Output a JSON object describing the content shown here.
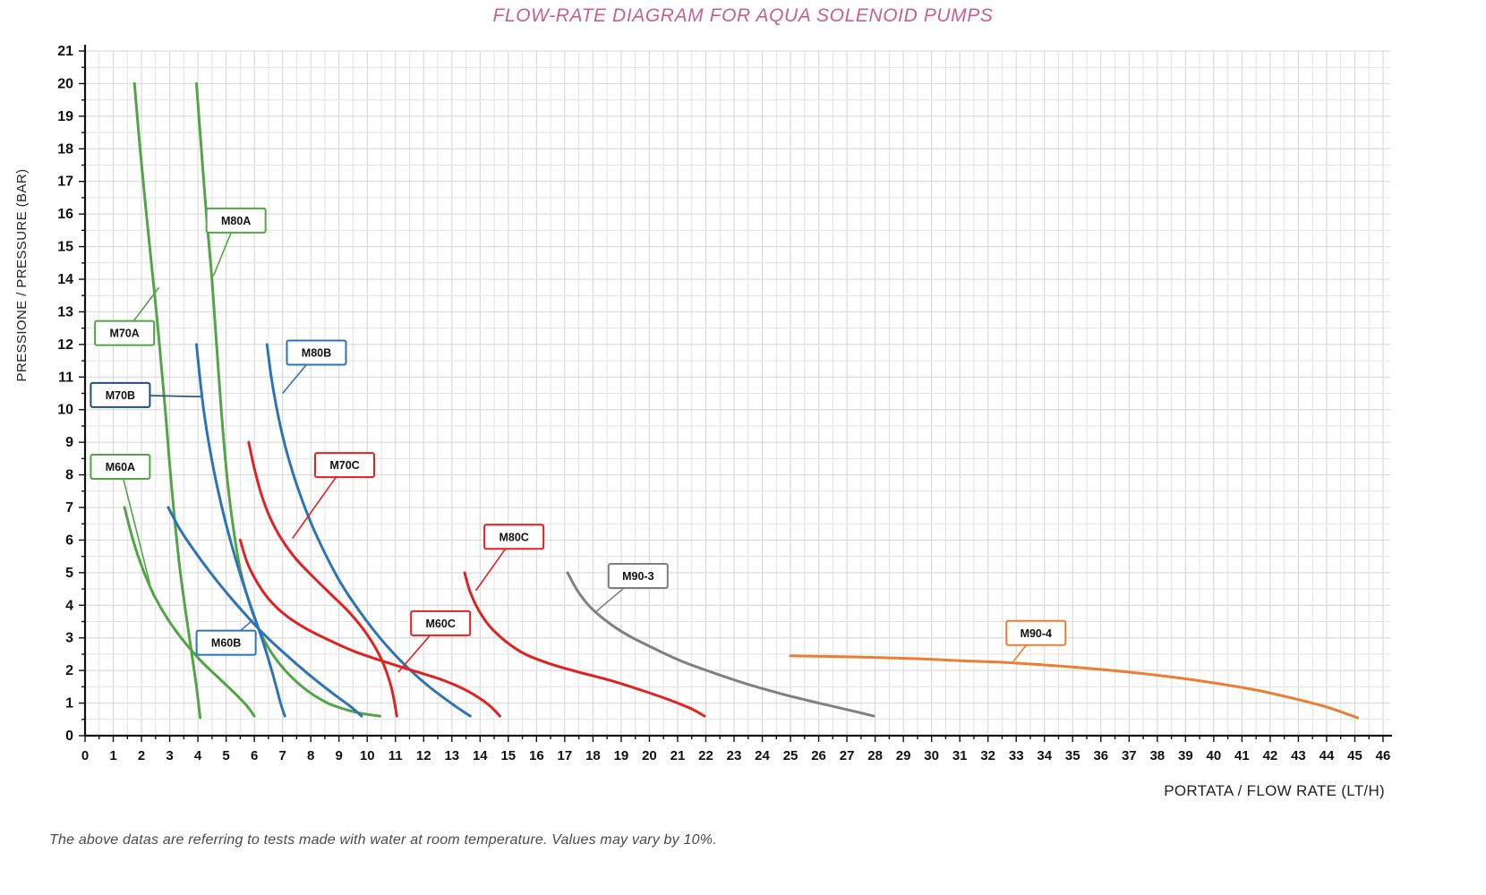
{
  "page": {
    "title_color": "#c4618e",
    "footnote": "The above datas are referring to tests made with water at room temperature. Values may vary by 10%."
  },
  "chart_data": {
    "type": "line",
    "title": "FLOW-RATE DIAGRAM FOR AQUA SOLENOID PUMPS",
    "xlabel": "PORTATA / FLOW RATE (LT/H)",
    "ylabel": "PRESSIONE / PRESSURE (BAR)",
    "xlim": [
      0,
      46
    ],
    "ylim": [
      0,
      21
    ],
    "x_tick_step": 1,
    "y_tick_step": 1,
    "minor_step": 0.5,
    "grid": true,
    "legend": "callout-labels-on-curves",
    "colors": {
      "green": "#52a447",
      "blue": "#2e74b5",
      "red": "#e02222",
      "gray": "#808080",
      "orange": "#ed7d31",
      "axis": "#111111",
      "grid_major": "#d4d4d4",
      "grid_minor": "#e3e3e3"
    },
    "series": [
      {
        "name": "M60A",
        "color": "#52a447",
        "points": [
          [
            1.4,
            7.0
          ],
          [
            1.7,
            6.0
          ],
          [
            2.05,
            5.1
          ],
          [
            2.45,
            4.3
          ],
          [
            2.95,
            3.55
          ],
          [
            3.5,
            2.9
          ],
          [
            4.1,
            2.3
          ],
          [
            4.7,
            1.8
          ],
          [
            5.25,
            1.35
          ],
          [
            5.7,
            0.95
          ],
          [
            6.0,
            0.6
          ]
        ],
        "label_box": [
          1.25,
          8.25
        ],
        "label_anchor": [
          2.3,
          4.65
        ]
      },
      {
        "name": "M70A",
        "color": "#52a447",
        "points": [
          [
            1.75,
            20.0
          ],
          [
            1.95,
            18.0
          ],
          [
            2.15,
            16.2
          ],
          [
            2.35,
            14.5
          ],
          [
            2.55,
            12.8
          ],
          [
            2.72,
            11.2
          ],
          [
            2.88,
            9.6
          ],
          [
            3.02,
            8.1
          ],
          [
            3.18,
            6.6
          ],
          [
            3.35,
            5.2
          ],
          [
            3.55,
            3.9
          ],
          [
            3.75,
            2.7
          ],
          [
            3.95,
            1.5
          ],
          [
            4.08,
            0.55
          ]
        ],
        "label_box": [
          1.4,
          12.35
        ],
        "label_anchor": [
          2.62,
          13.75
        ]
      },
      {
        "name": "M80A",
        "color": "#52a447",
        "points": [
          [
            3.95,
            20.0
          ],
          [
            4.12,
            18.0
          ],
          [
            4.3,
            16.0
          ],
          [
            4.48,
            14.2
          ],
          [
            4.62,
            12.5
          ],
          [
            4.76,
            10.8
          ],
          [
            4.9,
            9.2
          ],
          [
            5.05,
            7.8
          ],
          [
            5.25,
            6.4
          ],
          [
            5.5,
            5.1
          ],
          [
            5.85,
            4.0
          ],
          [
            6.3,
            3.0
          ],
          [
            6.9,
            2.2
          ],
          [
            7.7,
            1.5
          ],
          [
            8.6,
            1.0
          ],
          [
            9.6,
            0.72
          ],
          [
            10.45,
            0.6
          ]
        ],
        "label_box": [
          5.35,
          15.8
        ],
        "label_anchor": [
          4.55,
          14.1
        ]
      },
      {
        "name": "M60B",
        "color": "#2e74b5",
        "points": [
          [
            2.95,
            7.0
          ],
          [
            3.35,
            6.35
          ],
          [
            3.85,
            5.7
          ],
          [
            4.4,
            5.05
          ],
          [
            5.0,
            4.4
          ],
          [
            5.65,
            3.75
          ],
          [
            6.35,
            3.1
          ],
          [
            7.1,
            2.5
          ],
          [
            7.9,
            1.9
          ],
          [
            8.7,
            1.35
          ],
          [
            9.4,
            0.9
          ],
          [
            9.8,
            0.6
          ]
        ],
        "label_box": [
          5.0,
          2.85
        ],
        "label_anchor": [
          5.95,
          3.55
        ]
      },
      {
        "name": "M70B",
        "color": "#2e74b5",
        "label_border": "#1f4e79",
        "points": [
          [
            3.95,
            12.0
          ],
          [
            4.08,
            10.9
          ],
          [
            4.22,
            9.9
          ],
          [
            4.4,
            8.9
          ],
          [
            4.62,
            7.9
          ],
          [
            4.88,
            6.9
          ],
          [
            5.18,
            5.9
          ],
          [
            5.52,
            4.9
          ],
          [
            5.9,
            3.9
          ],
          [
            6.3,
            2.9
          ],
          [
            6.65,
            1.9
          ],
          [
            6.93,
            1.0
          ],
          [
            7.08,
            0.6
          ]
        ],
        "label_box": [
          1.25,
          10.45
        ],
        "label_anchor": [
          4.1,
          10.4
        ]
      },
      {
        "name": "M80B",
        "color": "#2e74b5",
        "points": [
          [
            6.45,
            12.0
          ],
          [
            6.6,
            11.0
          ],
          [
            6.78,
            10.1
          ],
          [
            7.0,
            9.2
          ],
          [
            7.28,
            8.3
          ],
          [
            7.62,
            7.4
          ],
          [
            8.02,
            6.5
          ],
          [
            8.5,
            5.6
          ],
          [
            9.05,
            4.7
          ],
          [
            9.7,
            3.85
          ],
          [
            10.45,
            3.0
          ],
          [
            11.3,
            2.2
          ],
          [
            12.2,
            1.5
          ],
          [
            13.05,
            0.95
          ],
          [
            13.65,
            0.6
          ]
        ],
        "label_box": [
          8.2,
          11.75
        ],
        "label_anchor": [
          7.0,
          10.5
        ]
      },
      {
        "name": "M60C",
        "color": "#e02222",
        "points": [
          [
            5.5,
            6.0
          ],
          [
            5.75,
            5.3
          ],
          [
            6.1,
            4.7
          ],
          [
            6.55,
            4.15
          ],
          [
            7.1,
            3.7
          ],
          [
            7.8,
            3.3
          ],
          [
            8.6,
            2.95
          ],
          [
            9.5,
            2.6
          ],
          [
            10.5,
            2.3
          ],
          [
            11.6,
            2.0
          ],
          [
            12.7,
            1.7
          ],
          [
            13.6,
            1.35
          ],
          [
            14.3,
            0.95
          ],
          [
            14.7,
            0.6
          ]
        ],
        "label_box": [
          12.6,
          3.45
        ],
        "label_anchor": [
          11.1,
          1.95
        ]
      },
      {
        "name": "M70C",
        "color": "#e02222",
        "points": [
          [
            5.8,
            9.0
          ],
          [
            6.0,
            8.2
          ],
          [
            6.25,
            7.4
          ],
          [
            6.55,
            6.7
          ],
          [
            6.95,
            6.05
          ],
          [
            7.45,
            5.45
          ],
          [
            8.05,
            4.9
          ],
          [
            8.7,
            4.35
          ],
          [
            9.4,
            3.75
          ],
          [
            10.0,
            3.1
          ],
          [
            10.5,
            2.35
          ],
          [
            10.85,
            1.5
          ],
          [
            11.05,
            0.6
          ]
        ],
        "label_box": [
          9.2,
          8.3
        ],
        "label_anchor": [
          7.35,
          6.05
        ]
      },
      {
        "name": "M80C",
        "color": "#e02222",
        "points": [
          [
            13.45,
            5.0
          ],
          [
            13.65,
            4.4
          ],
          [
            13.95,
            3.85
          ],
          [
            14.35,
            3.35
          ],
          [
            14.9,
            2.9
          ],
          [
            15.6,
            2.5
          ],
          [
            16.5,
            2.2
          ],
          [
            17.5,
            1.95
          ],
          [
            18.6,
            1.7
          ],
          [
            19.7,
            1.4
          ],
          [
            20.7,
            1.1
          ],
          [
            21.5,
            0.82
          ],
          [
            21.95,
            0.6
          ]
        ],
        "label_box": [
          15.2,
          6.1
        ],
        "label_anchor": [
          13.85,
          4.45
        ]
      },
      {
        "name": "M90-3",
        "color": "#808080",
        "points": [
          [
            17.1,
            5.0
          ],
          [
            17.45,
            4.45
          ],
          [
            17.9,
            3.95
          ],
          [
            18.5,
            3.5
          ],
          [
            19.2,
            3.1
          ],
          [
            20.1,
            2.7
          ],
          [
            21.1,
            2.3
          ],
          [
            22.2,
            1.95
          ],
          [
            23.4,
            1.6
          ],
          [
            24.7,
            1.28
          ],
          [
            26.0,
            1.0
          ],
          [
            27.1,
            0.78
          ],
          [
            27.95,
            0.6
          ]
        ],
        "label_box": [
          19.6,
          4.9
        ],
        "label_anchor": [
          18.1,
          3.8
        ]
      },
      {
        "name": "M90-4",
        "color": "#ed7d31",
        "points": [
          [
            25.0,
            2.45
          ],
          [
            26.5,
            2.43
          ],
          [
            28.0,
            2.4
          ],
          [
            29.5,
            2.36
          ],
          [
            31.0,
            2.3
          ],
          [
            32.5,
            2.25
          ],
          [
            34.0,
            2.17
          ],
          [
            35.5,
            2.07
          ],
          [
            37.0,
            1.95
          ],
          [
            38.5,
            1.8
          ],
          [
            40.0,
            1.62
          ],
          [
            41.5,
            1.4
          ],
          [
            42.8,
            1.15
          ],
          [
            44.0,
            0.88
          ],
          [
            45.1,
            0.55
          ]
        ],
        "label_box": [
          33.7,
          3.15
        ],
        "label_anchor": [
          32.9,
          2.28
        ]
      }
    ]
  }
}
